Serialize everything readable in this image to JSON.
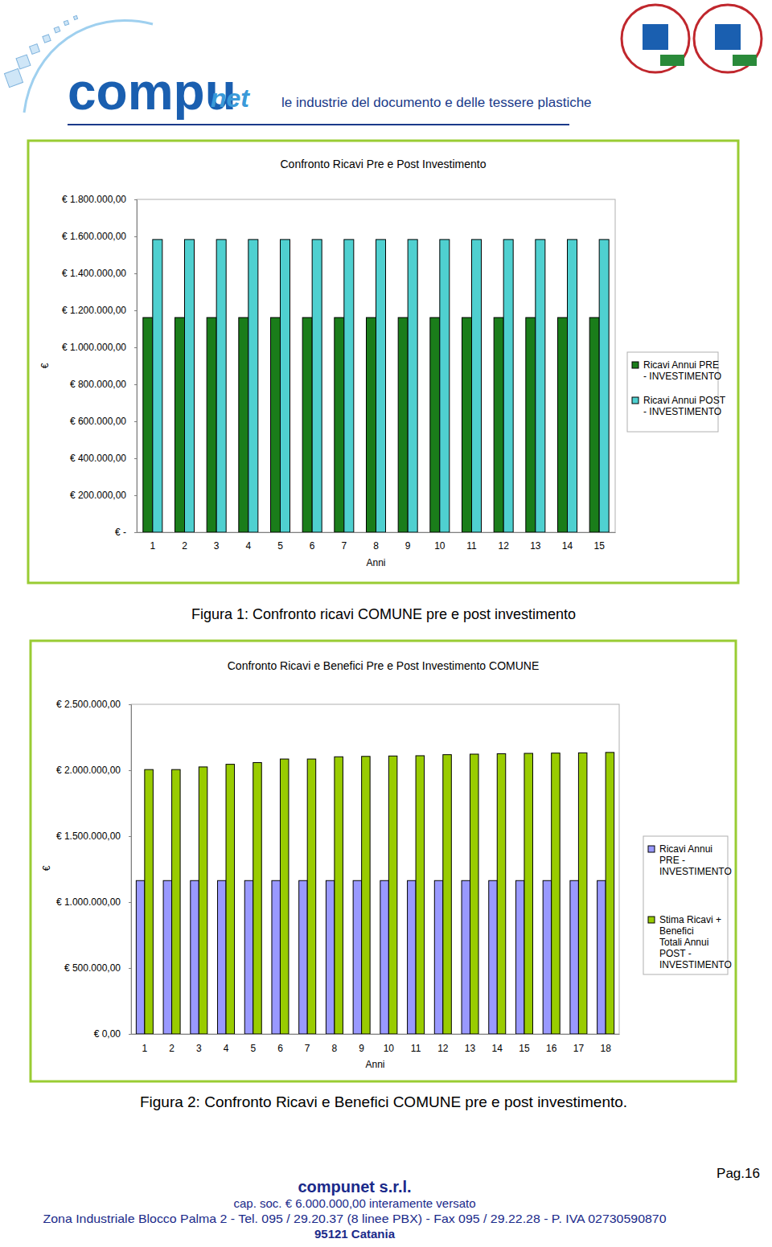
{
  "header": {
    "logo_main": "compu",
    "logo_suffix": "net",
    "tagline": "le industrie del documento e delle tessere plastiche"
  },
  "chart_data": [
    {
      "type": "bar",
      "title": "Confronto Ricavi Pre e Post Investimento",
      "x_label": "Anni",
      "y_label": "€",
      "categories": [
        "1",
        "2",
        "3",
        "4",
        "5",
        "6",
        "7",
        "8",
        "9",
        "10",
        "11",
        "12",
        "13",
        "14",
        "15"
      ],
      "series": [
        {
          "name": "Ricavi Annui PRE - INVESTIMENTO",
          "color": "#1a7d1a",
          "values": [
            1161000,
            1161000,
            1161000,
            1161000,
            1161000,
            1161000,
            1161000,
            1161000,
            1161000,
            1161000,
            1161000,
            1161000,
            1161000,
            1161000,
            1161000
          ]
        },
        {
          "name": "Ricavi Annui POST - INVESTIMENTO",
          "color": "#4fd0d0",
          "values": [
            1583000,
            1583000,
            1583000,
            1583000,
            1583000,
            1583000,
            1583000,
            1583000,
            1583000,
            1583000,
            1583000,
            1583000,
            1583000,
            1583000,
            1583000
          ]
        }
      ],
      "ylim": [
        0,
        1800000
      ],
      "yticks": [
        {
          "value": 0,
          "label": "€ -"
        },
        {
          "value": 200000,
          "label": "€ 200.000,00"
        },
        {
          "value": 400000,
          "label": "€ 400.000,00"
        },
        {
          "value": 600000,
          "label": "€ 600.000,00"
        },
        {
          "value": 800000,
          "label": "€ 800.000,00"
        },
        {
          "value": 1000000,
          "label": "€ 1.000.000,00"
        },
        {
          "value": 1200000,
          "label": "€ 1.200.000,00"
        },
        {
          "value": 1400000,
          "label": "€ 1.400.000,00"
        },
        {
          "value": 1600000,
          "label": "€ 1.600.000,00"
        },
        {
          "value": 1800000,
          "label": "€ 1.800.000,00"
        }
      ],
      "grid": false,
      "legend": "right"
    },
    {
      "type": "bar",
      "title": "Confronto Ricavi e Benefici Pre e Post Investimento COMUNE",
      "x_label": "Anni",
      "y_label": "€",
      "categories": [
        "1",
        "2",
        "3",
        "4",
        "5",
        "6",
        "7",
        "8",
        "9",
        "10",
        "11",
        "12",
        "13",
        "14",
        "15",
        "16",
        "17",
        "18"
      ],
      "series": [
        {
          "name": "Ricavi Annui PRE - INVESTIMENTO",
          "color": "#9999ff",
          "values": [
            1163000,
            1163000,
            1163000,
            1163000,
            1163000,
            1163000,
            1163000,
            1163000,
            1163000,
            1163000,
            1163000,
            1163000,
            1163000,
            1163000,
            1163000,
            1163000,
            1163000,
            1163000
          ]
        },
        {
          "name": "Stima Ricavi + Benefici Totali Annui POST - INVESTIMENTO",
          "color": "#99cc00",
          "values": [
            2005000,
            2005000,
            2025000,
            2045000,
            2058000,
            2085000,
            2085000,
            2102000,
            2105000,
            2108000,
            2110000,
            2118000,
            2122000,
            2125000,
            2128000,
            2130000,
            2132000,
            2135000
          ]
        }
      ],
      "ylim": [
        0,
        2500000
      ],
      "yticks": [
        {
          "value": 0,
          "label": "€ 0,00"
        },
        {
          "value": 500000,
          "label": "€ 500.000,00"
        },
        {
          "value": 1000000,
          "label": "€ 1.000.000,00"
        },
        {
          "value": 1500000,
          "label": "€ 1.500.000,00"
        },
        {
          "value": 2000000,
          "label": "€ 2.000.000,00"
        },
        {
          "value": 2500000,
          "label": "€ 2.500.000,00"
        }
      ],
      "grid": false,
      "legend": "right"
    }
  ],
  "captions": [
    "Figura 1: Confronto ricavi COMUNE pre e post investimento",
    "Figura 2: Confronto Ricavi e Benefici COMUNE pre e post investimento."
  ],
  "footer": {
    "company": "compunet s.r.l.",
    "capital": "cap. soc. € 6.000.000,00 interamente versato",
    "address": "Zona Industriale Blocco Palma 2 - Tel. 095 / 29.20.37 (8 linee PBX) - Fax 095 / 29.22.28 - P. IVA 02730590870",
    "city": "95121 Catania",
    "page": "Pag.16"
  }
}
